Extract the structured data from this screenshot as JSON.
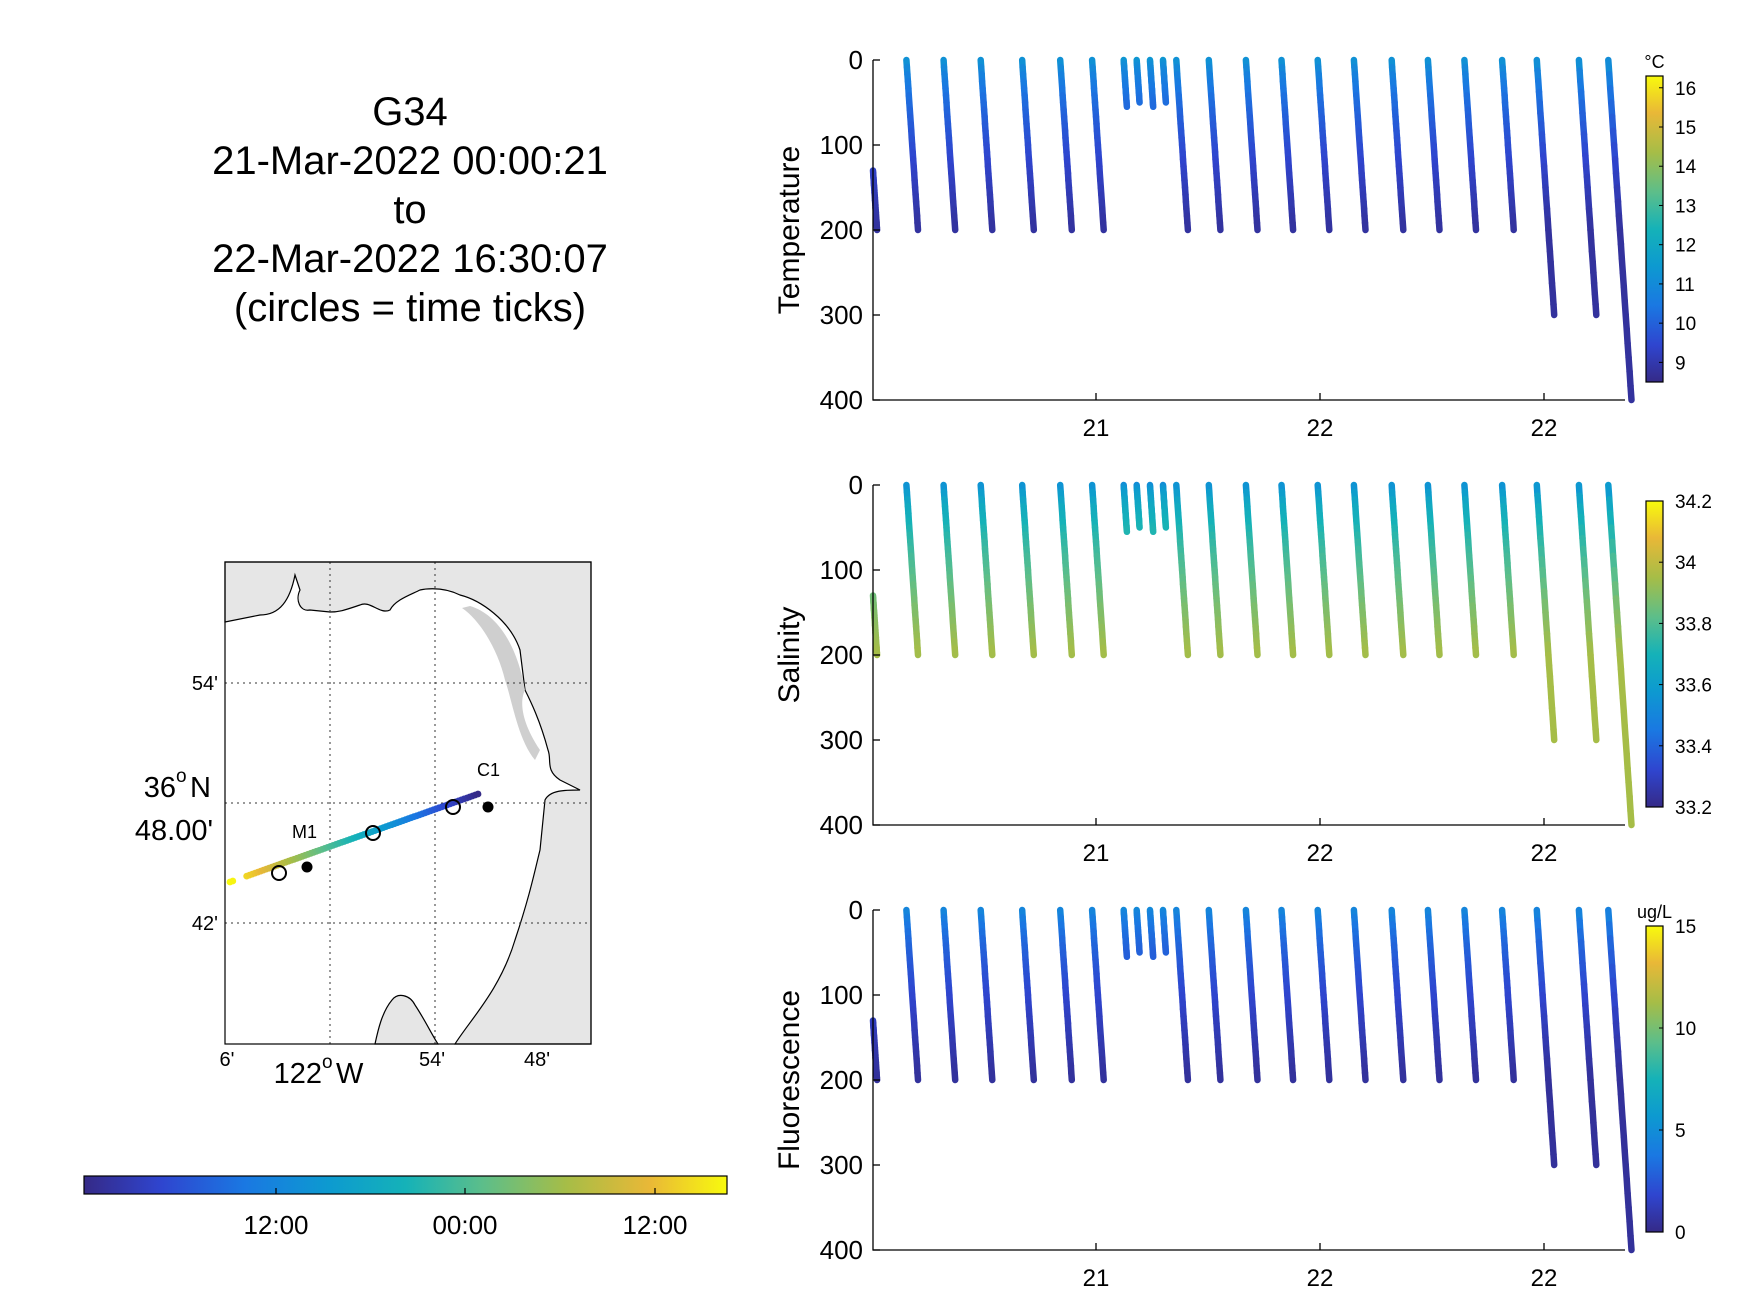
{
  "header": {
    "glider": "G34",
    "start": "21-Mar-2022 00:00:21",
    "to": "to",
    "end": "22-Mar-2022 16:30:07",
    "note": "(circles = time ticks)"
  },
  "map": {
    "lat_ticks": [
      "54'",
      "42'"
    ],
    "lat_center_deg": "36",
    "lat_center_suffix": "N",
    "lat_center_min": "48.00'",
    "lon_ticks": [
      "6'",
      "54'",
      "48'"
    ],
    "lon_center_deg": "122",
    "lon_center_suffix": "W",
    "station_labels": [
      "C1",
      "M1"
    ],
    "land_color": "#e6e6e6",
    "water_color": "#ffffff"
  },
  "time_colorbar": {
    "tick_labels": [
      "12:00",
      "00:00",
      "12:00"
    ]
  },
  "x_ticks": [
    "21",
    "22",
    "22"
  ],
  "y_ticks": [
    "0",
    "100",
    "200",
    "300",
    "400"
  ],
  "panels": [
    {
      "ylabel": "Temperature",
      "unit": "°C",
      "cbar_ticks": [
        "16",
        "15",
        "14",
        "13",
        "12",
        "11",
        "10",
        "9"
      ],
      "cbar_range": [
        8.5,
        16.3
      ]
    },
    {
      "ylabel": "Salinity",
      "unit": "",
      "cbar_ticks": [
        "34.2",
        "34",
        "33.8",
        "33.6",
        "33.4",
        "33.2"
      ],
      "cbar_range": [
        33.2,
        34.2
      ]
    },
    {
      "ylabel": "Fluorescence",
      "unit": "ug/L",
      "cbar_ticks": [
        "15",
        "10",
        "5",
        "0"
      ],
      "cbar_range": [
        0,
        15
      ]
    }
  ],
  "chart_data": [
    {
      "type": "scatter",
      "name": "profiles",
      "xlabel": "",
      "ylabel": "Temperature / Salinity / Fluorescence",
      "ylim": [
        0,
        400
      ],
      "y_reversed": true,
      "xlim": [
        "2022-03-21T00:00",
        "2022-03-22T16:30"
      ],
      "profiles_shared": [
        {
          "start": "2022-03-21T00:00",
          "top": 130,
          "bottom": 200
        },
        {
          "start": "2022-03-21T01:48",
          "top": 0,
          "bottom": 200
        },
        {
          "start": "2022-03-21T03:48",
          "top": 0,
          "bottom": 200
        },
        {
          "start": "2022-03-21T05:48",
          "top": 0,
          "bottom": 200
        },
        {
          "start": "2022-03-21T08:02",
          "top": 0,
          "bottom": 200
        },
        {
          "start": "2022-03-21T10:05",
          "top": 0,
          "bottom": 200
        },
        {
          "start": "2022-03-21T11:48",
          "top": 0,
          "bottom": 200
        },
        {
          "start": "2022-03-21T13:30",
          "top": 0,
          "bottom": 55
        },
        {
          "start": "2022-03-21T14:12",
          "top": 0,
          "bottom": 50
        },
        {
          "start": "2022-03-21T14:55",
          "top": 0,
          "bottom": 55
        },
        {
          "start": "2022-03-21T15:37",
          "top": 0,
          "bottom": 50
        },
        {
          "start": "2022-03-21T16:20",
          "top": 0,
          "bottom": 200
        },
        {
          "start": "2022-03-21T18:05",
          "top": 0,
          "bottom": 200
        },
        {
          "start": "2022-03-21T20:05",
          "top": 0,
          "bottom": 200
        },
        {
          "start": "2022-03-21T22:00",
          "top": 0,
          "bottom": 200
        },
        {
          "start": "2022-03-21T23:57",
          "top": 0,
          "bottom": 200
        },
        {
          "start": "2022-03-22T01:54",
          "top": 0,
          "bottom": 200
        },
        {
          "start": "2022-03-22T03:56",
          "top": 0,
          "bottom": 200
        },
        {
          "start": "2022-03-22T05:53",
          "top": 0,
          "bottom": 200
        },
        {
          "start": "2022-03-22T07:51",
          "top": 0,
          "bottom": 200
        },
        {
          "start": "2022-03-22T09:53",
          "top": 0,
          "bottom": 200
        },
        {
          "start": "2022-03-22T11:45",
          "top": 0,
          "bottom": 300
        },
        {
          "start": "2022-03-22T14:01",
          "top": 0,
          "bottom": 300
        },
        {
          "start": "2022-03-22T15:36",
          "top": 0,
          "bottom": 400
        }
      ],
      "series": [
        {
          "name": "Temperature",
          "surface_value": 11.5,
          "deep_value": 8.8
        },
        {
          "name": "Salinity",
          "surface_value": 33.5,
          "deep_value": 33.95
        },
        {
          "name": "Fluorescence",
          "surface_value": 5,
          "deep_value": 0.5
        }
      ]
    },
    {
      "type": "line",
      "name": "glider track map",
      "xlabel": "122°W",
      "ylabel": "36°N 48.00'",
      "track_color_by": "time",
      "stations": [
        {
          "label": "C1"
        },
        {
          "label": "M1"
        }
      ]
    }
  ]
}
